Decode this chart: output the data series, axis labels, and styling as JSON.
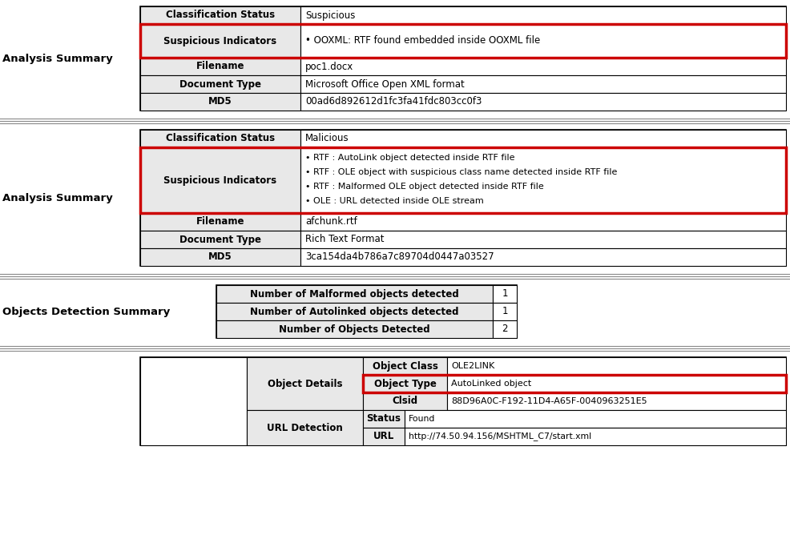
{
  "bg_color": "#ffffff",
  "section1": {
    "label": "Analysis Summary",
    "rows": [
      {
        "key": "Classification Status",
        "value": "Suspicious",
        "red_border": false
      },
      {
        "key": "Suspicious Indicators",
        "value": "• OOXML: RTF found embedded inside OOXML file",
        "red_border": true,
        "multiline": false
      },
      {
        "key": "Filename",
        "value": "poc1.docx",
        "red_border": false
      },
      {
        "key": "Document Type",
        "value": "Microsoft Office Open XML format",
        "red_border": false
      },
      {
        "key": "MD5",
        "value": "00ad6d892612d1fc3fa41fdc803cc0f3",
        "red_border": false
      }
    ]
  },
  "section2": {
    "label": "Analysis Summary",
    "rows": [
      {
        "key": "Classification Status",
        "value": "Malicious",
        "red_border": false
      },
      {
        "key": "Suspicious Indicators",
        "value": "• RTF : AutoLink object detected inside RTF file\n• RTF : OLE object with suspicious class name detected inside RTF file\n• RTF : Malformed OLE object detected inside RTF file\n• OLE : URL detected inside OLE stream",
        "red_border": true,
        "multiline": true
      },
      {
        "key": "Filename",
        "value": "afchunk.rtf",
        "red_border": false
      },
      {
        "key": "Document Type",
        "value": "Rich Text Format",
        "red_border": false
      },
      {
        "key": "MD5",
        "value": "3ca154da4b786a7c89704d0447a03527",
        "red_border": false
      }
    ]
  },
  "section3": {
    "label": "Objects Detection Summary",
    "rows": [
      {
        "key": "Number of Malformed objects detected",
        "value": "1"
      },
      {
        "key": "Number of Autolinked objects detected",
        "value": "1"
      },
      {
        "key": "Number of Objects Detected",
        "value": "2"
      }
    ]
  },
  "section4": {
    "obj_label": "Object Details",
    "url_label": "URL Detection",
    "sub_rows": [
      {
        "key": "Object Class",
        "value": "OLE2LINK",
        "red_border": false
      },
      {
        "key": "Object Type",
        "value": "AutoLinked object",
        "red_border": true
      },
      {
        "key": "Clsid",
        "value": "88D96A0C-F192-11D4-A65F-0040963251E5",
        "red_border": false
      }
    ],
    "url_rows": [
      {
        "key": "Status",
        "value": "Found"
      },
      {
        "key": "URL",
        "value": "http://74.50.94.156/MSHTML_C7/start.xml"
      }
    ]
  },
  "colors": {
    "header_bg": "#e8e8e8",
    "cell_bg": "#ffffff",
    "border": "#000000",
    "red_border": "#cc0000",
    "label_color": "#000000",
    "sep_line": "#888888"
  }
}
